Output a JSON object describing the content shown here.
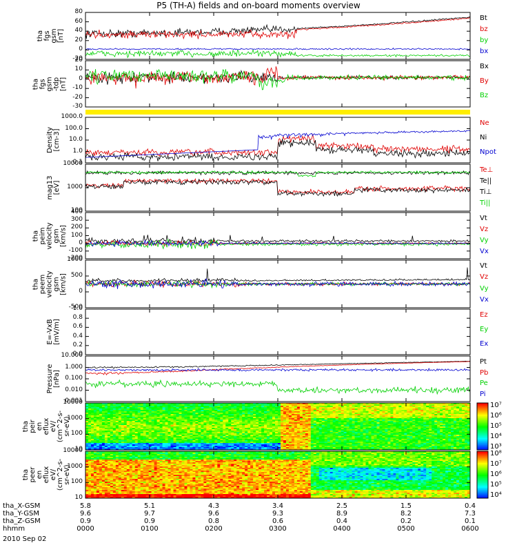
{
  "title": "P5 (TH-A) fields and on-board moments overview",
  "date": "2010 Sep 02",
  "colors": {
    "black": "#000000",
    "red": "#e00000",
    "green": "#00d000",
    "blue": "#0000d0",
    "yellow": "#ffee00"
  },
  "chart_data": [
    {
      "type": "line",
      "ylabel": [
        "tha",
        "fgs",
        "gsm",
        "[nT]"
      ],
      "ylim": [
        -20,
        80
      ],
      "yticks": [
        "80",
        "60",
        "40",
        "20",
        "0",
        "-20"
      ],
      "series": [
        {
          "name": "Bt",
          "color": "black"
        },
        {
          "name": "bz",
          "color": "red"
        },
        {
          "name": "by",
          "color": "green"
        },
        {
          "name": "bx",
          "color": "blue"
        }
      ]
    },
    {
      "type": "line",
      "ylabel": [
        "tha",
        "fgs",
        "gsm",
        "-tdp",
        "[nT]"
      ],
      "ylim": [
        -35,
        20
      ],
      "yticks": [
        "20",
        "10",
        "0",
        "-10",
        "-20",
        "-30"
      ],
      "series": [
        {
          "name": "Bx",
          "color": "black"
        },
        {
          "name": "By",
          "color": "red"
        },
        {
          "name": "Bz",
          "color": "green"
        }
      ]
    },
    {
      "type": "line",
      "ylabel": [
        "Density",
        "[cm-3]"
      ],
      "ylim": [
        0.1,
        1000
      ],
      "log": true,
      "yticks": [
        "1000.0",
        "100.0",
        "10.0",
        "1.0",
        "0.1"
      ],
      "series": [
        {
          "name": "Ne",
          "color": "red"
        },
        {
          "name": "Ni",
          "color": "black"
        },
        {
          "name": "Npot",
          "color": "blue"
        }
      ]
    },
    {
      "type": "line",
      "ylabel": [
        "mag13",
        "[eV]"
      ],
      "ylim": [
        10,
        10000
      ],
      "log": true,
      "yticks": [
        "10000",
        "1000",
        "100"
      ],
      "series": [
        {
          "name": "Te⊥",
          "color": "red"
        },
        {
          "name": "Te||",
          "color": "black"
        },
        {
          "name": "Ti⊥",
          "color": "black"
        },
        {
          "name": "Ti||",
          "color": "green"
        }
      ]
    },
    {
      "type": "line",
      "ylabel": [
        "tha",
        "peim",
        "velocity",
        "gsm",
        "[km/s]"
      ],
      "ylim": [
        -200,
        400
      ],
      "yticks": [
        "400",
        "300",
        "200",
        "100",
        "0",
        "-100",
        "-200"
      ],
      "series": [
        {
          "name": "Vt",
          "color": "black"
        },
        {
          "name": "Vz",
          "color": "red"
        },
        {
          "name": "Vy",
          "color": "green"
        },
        {
          "name": "Vx",
          "color": "blue"
        }
      ]
    },
    {
      "type": "line",
      "ylabel": [
        "tha",
        "peem",
        "velocity",
        "gsm",
        "[km/s]"
      ],
      "ylim": [
        -1000,
        1000
      ],
      "yticks": [
        "1000",
        "500",
        "0",
        "-500"
      ],
      "series": [
        {
          "name": "Vt",
          "color": "black"
        },
        {
          "name": "Vz",
          "color": "red"
        },
        {
          "name": "Vy",
          "color": "green"
        },
        {
          "name": "Vx",
          "color": "blue"
        }
      ]
    },
    {
      "type": "line",
      "ylabel": [
        "E=-VxB",
        "[mV/m]"
      ],
      "ylim": [
        0,
        1
      ],
      "yticks": [
        "1.0",
        "0.8",
        "0.6",
        "0.4",
        "0.2",
        "0.0"
      ],
      "series": [
        {
          "name": "Ez",
          "color": "red"
        },
        {
          "name": "Ey",
          "color": "green"
        },
        {
          "name": "Ex",
          "color": "blue"
        }
      ]
    },
    {
      "type": "line",
      "ylabel": [
        "Pressure",
        "[nPa]"
      ],
      "ylim": [
        0.001,
        10
      ],
      "log": true,
      "yticks": [
        "10.000",
        "1.000",
        "0.100",
        "0.010",
        "0.001"
      ],
      "series": [
        {
          "name": "Pt",
          "color": "black"
        },
        {
          "name": "Pb",
          "color": "red"
        },
        {
          "name": "Pe",
          "color": "green"
        },
        {
          "name": "Pi",
          "color": "blue"
        }
      ]
    },
    {
      "type": "heatmap",
      "ylabel": [
        "tha",
        "peir",
        "en",
        "eflux",
        "eV/",
        "(cm^2-s-",
        "sr-eV)"
      ],
      "ylim": [
        5,
        20000
      ],
      "log": true,
      "yticks": [
        "10000",
        "1000",
        "100",
        "10"
      ],
      "colorbar": [
        "10⁷",
        "10⁶",
        "10⁵",
        "10⁴",
        "10³"
      ]
    },
    {
      "type": "heatmap",
      "ylabel": [
        "tha",
        "peer",
        "en",
        "eflux",
        "eV/",
        "(cm^2-s-",
        "sr-eV)"
      ],
      "ylim": [
        5,
        20000
      ],
      "log": true,
      "yticks": [
        "10000",
        "1000",
        "100",
        "10"
      ],
      "colorbar": [
        "10⁸",
        "10⁷",
        "10⁶",
        "10⁵",
        "10⁴"
      ]
    }
  ],
  "xaxis": {
    "hhmm": [
      "0000",
      "0100",
      "0200",
      "0300",
      "0400",
      "0500",
      "0600"
    ],
    "rows": [
      {
        "label": "tha_X-GSM",
        "values": [
          "5.8",
          "5.1",
          "4.3",
          "3.4",
          "2.5",
          "1.5",
          "0.4"
        ]
      },
      {
        "label": "tha_Y-GSM",
        "values": [
          "9.6",
          "9.7",
          "9.6",
          "9.3",
          "8.9",
          "8.2",
          "7.3"
        ]
      },
      {
        "label": "tha_Z-GSM",
        "values": [
          "0.9",
          "0.9",
          "0.8",
          "0.6",
          "0.4",
          "0.2",
          "0.1"
        ]
      },
      {
        "label": "hhmm",
        "values": [
          "0000",
          "0100",
          "0200",
          "0300",
          "0400",
          "0500",
          "0600"
        ]
      }
    ]
  }
}
